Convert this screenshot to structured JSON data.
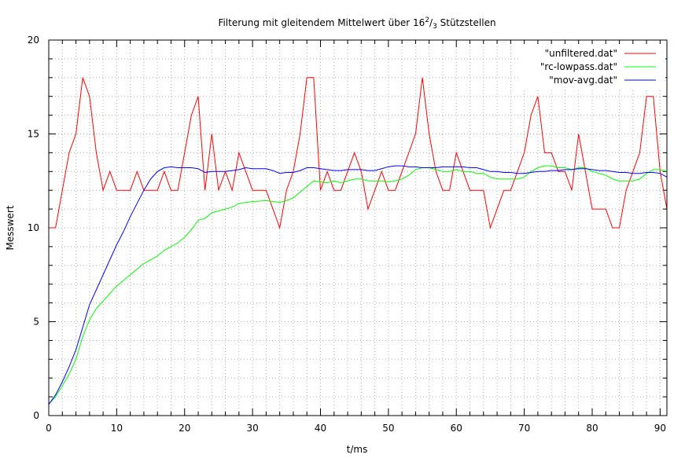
{
  "chart_data": {
    "type": "line",
    "title": "Filterung mit gleitendem Mittelwert über 16",
    "title_sup": "2",
    "title_sub": "3",
    "title_tail": " Stützstellen",
    "xlabel": "t/ms",
    "ylabel": "Messwert",
    "xlim": [
      0,
      91
    ],
    "ylim": [
      0,
      20
    ],
    "xticks": [
      0,
      10,
      20,
      30,
      40,
      50,
      60,
      70,
      80,
      90
    ],
    "yticks": [
      0,
      5,
      10,
      15,
      20
    ],
    "grid": true,
    "legend_position": "top-right",
    "series": [
      {
        "name": "\"unfiltered.dat\"",
        "color": "#ff0000",
        "x": [
          0,
          1,
          2,
          3,
          4,
          5,
          6,
          7,
          8,
          9,
          10,
          11,
          12,
          13,
          14,
          15,
          16,
          17,
          18,
          19,
          20,
          21,
          22,
          23,
          24,
          25,
          26,
          27,
          28,
          29,
          30,
          31,
          32,
          33,
          34,
          35,
          36,
          37,
          38,
          39,
          40,
          41,
          42,
          43,
          44,
          45,
          46,
          47,
          48,
          49,
          50,
          51,
          52,
          53,
          54,
          55,
          56,
          57,
          58,
          59,
          60,
          61,
          62,
          63,
          64,
          65,
          66,
          67,
          68,
          69,
          70,
          71,
          72,
          73,
          74,
          75,
          76,
          77,
          78,
          79,
          80,
          81,
          82,
          83,
          84,
          85,
          86,
          87,
          88,
          89,
          90,
          91
        ],
        "values": [
          10,
          10,
          12,
          14,
          15,
          18,
          17,
          14,
          12,
          13,
          12,
          12,
          12,
          13,
          12,
          12,
          12,
          13,
          12,
          12,
          14,
          16,
          17,
          12,
          15,
          12,
          13,
          12,
          14,
          13,
          12,
          12,
          12,
          11,
          10,
          12,
          13,
          15,
          18,
          18,
          12,
          13,
          12,
          12,
          13,
          14,
          13,
          11,
          12,
          13,
          12,
          12,
          13,
          14,
          15,
          18,
          15,
          13,
          12,
          12,
          14,
          13,
          12,
          12,
          12,
          10,
          11,
          12,
          12,
          13,
          14,
          16,
          17,
          14,
          14,
          13,
          13,
          12,
          15,
          13,
          11,
          11,
          11,
          10,
          10,
          12,
          13,
          14,
          17,
          17,
          13,
          11
        ]
      },
      {
        "name": "\"rc-lowpass.dat\"",
        "color": "#00ff00",
        "x": [
          0,
          1,
          2,
          3,
          4,
          5,
          6,
          7,
          8,
          9,
          10,
          11,
          12,
          13,
          14,
          15,
          16,
          17,
          18,
          19,
          20,
          21,
          22,
          23,
          24,
          25,
          26,
          27,
          28,
          29,
          30,
          31,
          32,
          33,
          34,
          35,
          36,
          37,
          38,
          39,
          40,
          41,
          42,
          43,
          44,
          45,
          46,
          47,
          48,
          49,
          50,
          51,
          52,
          53,
          54,
          55,
          56,
          57,
          58,
          59,
          60,
          61,
          62,
          63,
          64,
          65,
          66,
          67,
          68,
          69,
          70,
          71,
          72,
          73,
          74,
          75,
          76,
          77,
          78,
          79,
          80,
          81,
          82,
          83,
          84,
          85,
          86,
          87,
          88,
          89,
          90,
          91
        ],
        "values": [
          0.6,
          1.0,
          1.6,
          2.2,
          3.0,
          4.2,
          5.1,
          5.7,
          6.1,
          6.5,
          6.9,
          7.2,
          7.5,
          7.8,
          8.1,
          8.3,
          8.5,
          8.8,
          9.0,
          9.2,
          9.5,
          9.9,
          10.4,
          10.5,
          10.8,
          10.9,
          11.0,
          11.1,
          11.3,
          11.35,
          11.4,
          11.42,
          11.45,
          11.4,
          11.35,
          11.45,
          11.6,
          11.9,
          12.2,
          12.5,
          12.45,
          12.4,
          12.5,
          12.4,
          12.5,
          12.6,
          12.6,
          12.5,
          12.5,
          12.5,
          12.45,
          12.5,
          12.6,
          12.8,
          13.1,
          13.2,
          13.2,
          13.1,
          13.0,
          13.0,
          13.1,
          13.0,
          13.0,
          12.9,
          12.9,
          12.7,
          12.6,
          12.6,
          12.6,
          12.6,
          12.7,
          13.0,
          13.2,
          13.3,
          13.3,
          13.2,
          13.2,
          13.1,
          13.2,
          13.2,
          13.0,
          12.9,
          12.8,
          12.6,
          12.5,
          12.5,
          12.5,
          12.6,
          12.9,
          13.1,
          13.1,
          13.0
        ]
      },
      {
        "name": "\"mov-avg.dat\"",
        "color": "#0000ff",
        "x": [
          0,
          1,
          2,
          3,
          4,
          5,
          6,
          7,
          8,
          9,
          10,
          11,
          12,
          13,
          14,
          15,
          16,
          17,
          18,
          19,
          20,
          21,
          22,
          23,
          24,
          25,
          26,
          27,
          28,
          29,
          30,
          31,
          32,
          33,
          34,
          35,
          36,
          37,
          38,
          39,
          40,
          41,
          42,
          43,
          44,
          45,
          46,
          47,
          48,
          49,
          50,
          51,
          52,
          53,
          54,
          55,
          56,
          57,
          58,
          59,
          60,
          61,
          62,
          63,
          64,
          65,
          66,
          67,
          68,
          69,
          70,
          71,
          72,
          73,
          74,
          75,
          76,
          77,
          78,
          79,
          80,
          81,
          82,
          83,
          84,
          85,
          86,
          87,
          88,
          89,
          90,
          91
        ],
        "values": [
          0.6,
          1.1,
          1.8,
          2.6,
          3.5,
          4.7,
          5.9,
          6.7,
          7.5,
          8.3,
          9.1,
          9.8,
          10.6,
          11.3,
          12.0,
          12.6,
          13.0,
          13.2,
          13.25,
          13.2,
          13.2,
          13.2,
          13.15,
          12.95,
          13.0,
          13.0,
          13.0,
          13.05,
          13.1,
          13.2,
          13.15,
          13.15,
          13.15,
          13.05,
          12.9,
          12.95,
          12.95,
          13.05,
          13.2,
          13.2,
          13.15,
          13.1,
          13.05,
          13.05,
          13.1,
          13.1,
          13.1,
          13.05,
          13.05,
          13.15,
          13.25,
          13.3,
          13.3,
          13.25,
          13.25,
          13.2,
          13.2,
          13.2,
          13.25,
          13.25,
          13.25,
          13.25,
          13.2,
          13.2,
          13.1,
          13.0,
          13.0,
          12.95,
          12.95,
          12.9,
          12.9,
          12.95,
          13.0,
          13.0,
          13.05,
          13.05,
          13.1,
          13.1,
          13.15,
          13.15,
          13.1,
          13.05,
          13.05,
          13.0,
          12.95,
          12.95,
          12.9,
          12.9,
          12.95,
          12.95,
          12.9,
          12.7
        ]
      }
    ]
  }
}
